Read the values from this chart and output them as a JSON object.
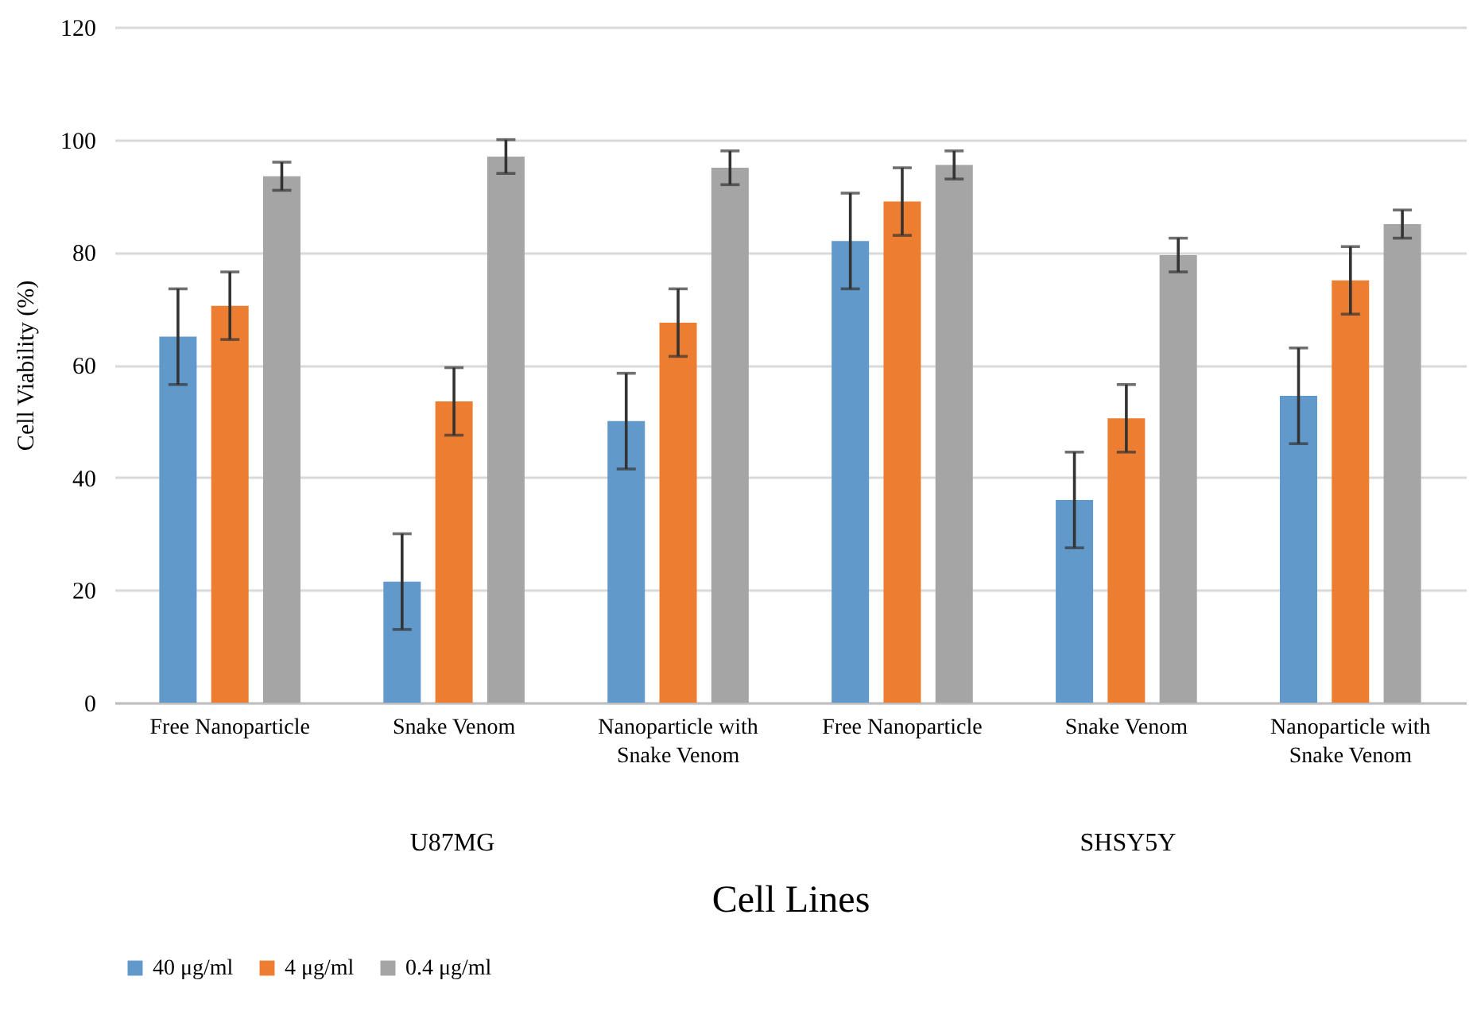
{
  "chart_data": {
    "type": "bar",
    "xlabel": "Cell Lines",
    "ylabel": "Cell Viability (%)",
    "categories": [
      "Free Nanoparticle",
      "Snake Venom",
      "Nanoparticle with Snake Venom",
      "Free Nanoparticle",
      "Snake Venom",
      "Nanoparticle with Snake Venom"
    ],
    "series": [
      {
        "name": "40 μg/ml",
        "color": "#6299cb",
        "values": [
          65,
          21.5,
          50,
          82,
          36,
          54.5
        ],
        "errors": [
          8.5,
          8.5,
          8.5,
          8.5,
          8.5,
          8.5
        ]
      },
      {
        "name": "4 μg/ml",
        "color": "#ed7d31",
        "values": [
          70.5,
          53.5,
          67.5,
          89,
          50.5,
          75
        ],
        "errors": [
          6,
          6,
          6,
          6,
          6,
          6
        ]
      },
      {
        "name": "0.4 μg/ml",
        "color": "#a5a5a5",
        "values": [
          93.5,
          97,
          95,
          95.5,
          79.5,
          85
        ],
        "errors": [
          2.5,
          3,
          3,
          2.5,
          3,
          2.5
        ]
      }
    ],
    "annotations": [
      "U87MG",
      "SHSY5Y"
    ],
    "ylim": [
      0,
      120
    ],
    "yticks": [
      0,
      20,
      40,
      60,
      80,
      100,
      120
    ],
    "grid": "y",
    "legend": "bottom"
  }
}
